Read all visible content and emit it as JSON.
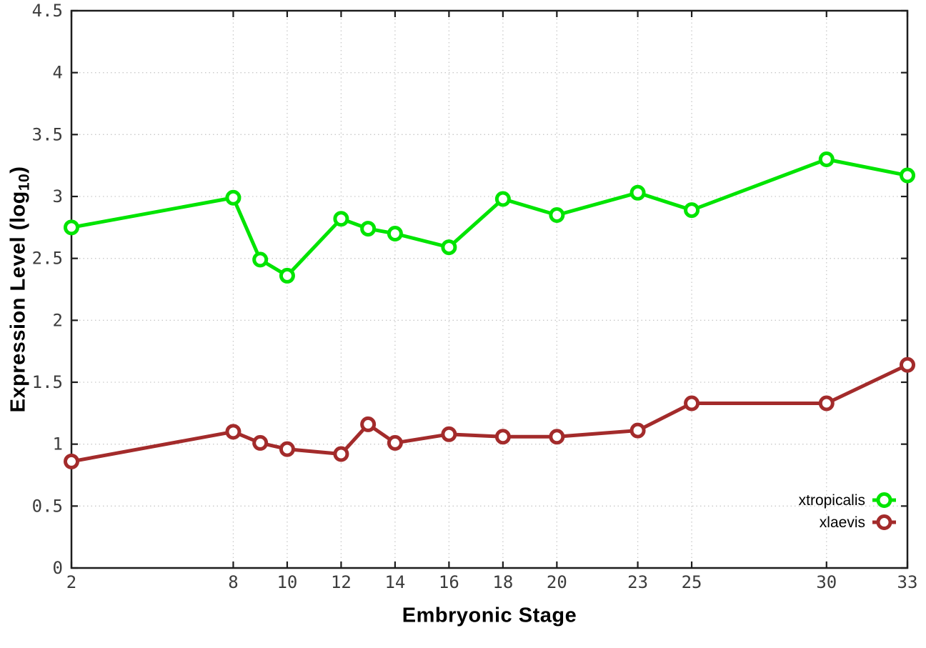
{
  "chart_data": {
    "type": "line",
    "title": "",
    "xlabel": "Embryonic Stage",
    "ylabel_prefix": "Expression Level (log",
    "ylabel_sub": "10",
    "ylabel_suffix": ")",
    "xlim": [
      2,
      33
    ],
    "ylim": [
      0,
      4.5
    ],
    "grid": true,
    "legend_position": "bottom-right",
    "x_ticks": [
      2,
      8,
      10,
      12,
      14,
      16,
      18,
      20,
      23,
      25,
      30,
      33
    ],
    "x_tick_labels": [
      "2",
      "8",
      "10",
      "12",
      "14",
      "16",
      "18",
      "20",
      "23",
      "25",
      "30",
      "33"
    ],
    "y_ticks": [
      0,
      0.5,
      1,
      1.5,
      2,
      2.5,
      3,
      3.5,
      4,
      4.5
    ],
    "y_tick_labels": [
      "0",
      "0.5",
      "1",
      "1.5",
      "2",
      "2.5",
      "3",
      "3.5",
      "4",
      "4.5"
    ],
    "x": [
      2,
      8,
      9,
      10,
      12,
      13,
      14,
      16,
      18,
      20,
      23,
      25,
      30,
      33
    ],
    "series": [
      {
        "name": "xtropicalis",
        "color": "#00e400",
        "values": [
          2.75,
          2.99,
          2.49,
          2.36,
          2.82,
          2.74,
          2.7,
          2.59,
          2.98,
          2.85,
          3.03,
          2.89,
          3.3,
          3.17
        ]
      },
      {
        "name": "xlaevis",
        "color": "#a32b2b",
        "values": [
          0.86,
          1.1,
          1.01,
          0.96,
          0.92,
          1.16,
          1.01,
          1.08,
          1.06,
          1.06,
          1.11,
          1.33,
          1.33,
          1.64
        ]
      }
    ],
    "colors": {
      "background": "#ffffff",
      "axis": "#1d1d1d",
      "grid": "#c9c9c9",
      "tick_text": "#3c3c3c",
      "axis_title_text": "#000000"
    }
  }
}
